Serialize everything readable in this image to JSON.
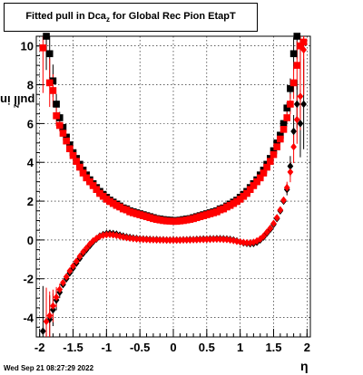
{
  "title": {
    "main": "Fitted pull in Dca",
    "sub": "z",
    "rest": " for Global Rec Pion EtapT"
  },
  "ylabel": {
    "main": "pull in Dca",
    "sub": "z"
  },
  "xlabel": "η",
  "datestamp": "Wed Sep 21 08:27:29 2022",
  "colors": {
    "series_black": "#000000",
    "series_red": "#ff0000",
    "grid": "#000000"
  },
  "chart_data": {
    "type": "scatter",
    "xlim": [
      -2.05,
      2.05
    ],
    "ylim": [
      -5.0,
      10.5
    ],
    "grid": true,
    "xticks": [
      "-2",
      "-1.5",
      "-1",
      "-0.5",
      "0",
      "0.5",
      "1",
      "1.5",
      "2"
    ],
    "yticks": [
      "-4",
      "-2",
      "0",
      "2",
      "4",
      "6",
      "8",
      "10"
    ],
    "series": [
      {
        "marker": "square",
        "color": "#000000",
        "points": [
          [
            -1.9,
            10.5
          ],
          [
            -1.85,
            9.6
          ],
          [
            -1.8,
            8.2
          ],
          [
            -1.75,
            7.0
          ],
          [
            -1.7,
            6.3
          ],
          [
            -1.65,
            5.8
          ],
          [
            -1.6,
            5.3
          ],
          [
            -1.55,
            4.9
          ],
          [
            -1.5,
            4.5
          ],
          [
            -1.45,
            4.2
          ],
          [
            -1.4,
            3.9
          ],
          [
            -1.35,
            3.6
          ],
          [
            -1.3,
            3.35
          ],
          [
            -1.25,
            3.1
          ],
          [
            -1.2,
            2.9
          ],
          [
            -1.15,
            2.7
          ],
          [
            -1.1,
            2.5
          ],
          [
            -1.05,
            2.35
          ],
          [
            -1.0,
            2.2
          ],
          [
            -0.95,
            2.05
          ],
          [
            -0.9,
            1.95
          ],
          [
            -0.85,
            1.85
          ],
          [
            -0.8,
            1.75
          ],
          [
            -0.75,
            1.65
          ],
          [
            -0.7,
            1.6
          ],
          [
            -0.65,
            1.5
          ],
          [
            -0.6,
            1.45
          ],
          [
            -0.55,
            1.4
          ],
          [
            -0.5,
            1.35
          ],
          [
            -0.45,
            1.3
          ],
          [
            -0.4,
            1.25
          ],
          [
            -0.35,
            1.2
          ],
          [
            -0.3,
            1.15
          ],
          [
            -0.25,
            1.1
          ],
          [
            -0.2,
            1.08
          ],
          [
            -0.15,
            1.05
          ],
          [
            -0.1,
            1.03
          ],
          [
            -0.05,
            1.02
          ],
          [
            0.0,
            1.0
          ],
          [
            0.05,
            1.0
          ],
          [
            0.1,
            1.02
          ],
          [
            0.15,
            1.05
          ],
          [
            0.2,
            1.08
          ],
          [
            0.25,
            1.1
          ],
          [
            0.3,
            1.15
          ],
          [
            0.35,
            1.2
          ],
          [
            0.4,
            1.25
          ],
          [
            0.45,
            1.3
          ],
          [
            0.5,
            1.35
          ],
          [
            0.55,
            1.4
          ],
          [
            0.6,
            1.45
          ],
          [
            0.65,
            1.5
          ],
          [
            0.7,
            1.6
          ],
          [
            0.75,
            1.65
          ],
          [
            0.8,
            1.75
          ],
          [
            0.85,
            1.85
          ],
          [
            0.9,
            1.95
          ],
          [
            0.95,
            2.05
          ],
          [
            1.0,
            2.2
          ],
          [
            1.05,
            2.35
          ],
          [
            1.1,
            2.5
          ],
          [
            1.15,
            2.7
          ],
          [
            1.2,
            2.9
          ],
          [
            1.25,
            3.1
          ],
          [
            1.3,
            3.35
          ],
          [
            1.35,
            3.6
          ],
          [
            1.4,
            3.9
          ],
          [
            1.45,
            4.2
          ],
          [
            1.5,
            4.6
          ],
          [
            1.55,
            5.0
          ],
          [
            1.6,
            5.4
          ],
          [
            1.65,
            6.0
          ],
          [
            1.7,
            6.8
          ],
          [
            1.75,
            7.8
          ],
          [
            1.8,
            9.6
          ],
          [
            1.85,
            10.6
          ],
          [
            1.9,
            10.0
          ]
        ]
      },
      {
        "marker": "square",
        "color": "#ff0000",
        "points": [
          [
            -1.95,
            9.9
          ],
          [
            -1.85,
            8.1
          ],
          [
            -1.8,
            7.7
          ],
          [
            -1.75,
            6.4
          ],
          [
            -1.7,
            5.9
          ],
          [
            -1.65,
            5.5
          ],
          [
            -1.6,
            5.1
          ],
          [
            -1.55,
            4.7
          ],
          [
            -1.5,
            4.35
          ],
          [
            -1.45,
            4.05
          ],
          [
            -1.4,
            3.75
          ],
          [
            -1.35,
            3.45
          ],
          [
            -1.3,
            3.2
          ],
          [
            -1.25,
            3.0
          ],
          [
            -1.2,
            2.8
          ],
          [
            -1.15,
            2.6
          ],
          [
            -1.1,
            2.4
          ],
          [
            -1.05,
            2.25
          ],
          [
            -1.0,
            2.1
          ],
          [
            -0.95,
            1.98
          ],
          [
            -0.9,
            1.88
          ],
          [
            -0.85,
            1.78
          ],
          [
            -0.8,
            1.7
          ],
          [
            -0.75,
            1.6
          ],
          [
            -0.7,
            1.55
          ],
          [
            -0.65,
            1.45
          ],
          [
            -0.6,
            1.4
          ],
          [
            -0.55,
            1.35
          ],
          [
            -0.5,
            1.3
          ],
          [
            -0.45,
            1.25
          ],
          [
            -0.4,
            1.2
          ],
          [
            -0.35,
            1.15
          ],
          [
            -0.3,
            1.1
          ],
          [
            -0.25,
            1.06
          ],
          [
            -0.2,
            1.03
          ],
          [
            -0.15,
            1.0
          ],
          [
            -0.1,
            0.98
          ],
          [
            -0.05,
            0.97
          ],
          [
            0.0,
            0.96
          ],
          [
            0.05,
            0.96
          ],
          [
            0.1,
            0.98
          ],
          [
            0.15,
            1.0
          ],
          [
            0.2,
            1.03
          ],
          [
            0.25,
            1.06
          ],
          [
            0.3,
            1.1
          ],
          [
            0.35,
            1.15
          ],
          [
            0.4,
            1.2
          ],
          [
            0.45,
            1.25
          ],
          [
            0.5,
            1.3
          ],
          [
            0.55,
            1.35
          ],
          [
            0.6,
            1.4
          ],
          [
            0.65,
            1.45
          ],
          [
            0.7,
            1.55
          ],
          [
            0.75,
            1.6
          ],
          [
            0.8,
            1.7
          ],
          [
            0.85,
            1.78
          ],
          [
            0.9,
            1.88
          ],
          [
            0.95,
            1.98
          ],
          [
            1.0,
            2.1
          ],
          [
            1.05,
            2.25
          ],
          [
            1.1,
            2.4
          ],
          [
            1.15,
            2.6
          ],
          [
            1.2,
            2.8
          ],
          [
            1.25,
            3.0
          ],
          [
            1.3,
            3.2
          ],
          [
            1.35,
            3.45
          ],
          [
            1.4,
            3.75
          ],
          [
            1.45,
            4.05
          ],
          [
            1.5,
            4.4
          ],
          [
            1.55,
            4.8
          ],
          [
            1.6,
            5.2
          ],
          [
            1.65,
            5.7
          ],
          [
            1.7,
            6.3
          ],
          [
            1.75,
            7.0
          ],
          [
            1.8,
            8.1
          ],
          [
            1.85,
            9.0
          ],
          [
            1.9,
            10.0
          ],
          [
            1.95,
            10.2
          ]
        ]
      },
      {
        "marker": "diamond",
        "color": "#000000",
        "points": [
          [
            -1.95,
            -4.7
          ],
          [
            -1.85,
            -4.1
          ],
          [
            -1.8,
            -3.6
          ],
          [
            -1.75,
            -3.1
          ],
          [
            -1.7,
            -2.7
          ],
          [
            -1.65,
            -2.3
          ],
          [
            -1.6,
            -2.0
          ],
          [
            -1.55,
            -1.7
          ],
          [
            -1.5,
            -1.45
          ],
          [
            -1.45,
            -1.2
          ],
          [
            -1.4,
            -0.95
          ],
          [
            -1.35,
            -0.7
          ],
          [
            -1.3,
            -0.5
          ],
          [
            -1.25,
            -0.3
          ],
          [
            -1.2,
            -0.1
          ],
          [
            -1.15,
            0.05
          ],
          [
            -1.1,
            0.2
          ],
          [
            -1.05,
            0.28
          ],
          [
            -1.0,
            0.33
          ],
          [
            -0.95,
            0.35
          ],
          [
            -0.9,
            0.33
          ],
          [
            -0.85,
            0.3
          ],
          [
            -0.8,
            0.25
          ],
          [
            -0.75,
            0.2
          ],
          [
            -0.7,
            0.16
          ],
          [
            -0.65,
            0.13
          ],
          [
            -0.6,
            0.1
          ],
          [
            -0.55,
            0.08
          ],
          [
            -0.5,
            0.06
          ],
          [
            -0.45,
            0.05
          ],
          [
            -0.4,
            0.04
          ],
          [
            -0.35,
            0.03
          ],
          [
            -0.3,
            0.02
          ],
          [
            -0.25,
            0.02
          ],
          [
            -0.2,
            0.01
          ],
          [
            -0.15,
            0.01
          ],
          [
            -0.1,
            0.0
          ],
          [
            -0.05,
            0.0
          ],
          [
            0.0,
            0.0
          ],
          [
            0.05,
            0.0
          ],
          [
            0.1,
            0.0
          ],
          [
            0.15,
            0.01
          ],
          [
            0.2,
            0.01
          ],
          [
            0.25,
            0.02
          ],
          [
            0.3,
            0.02
          ],
          [
            0.35,
            0.03
          ],
          [
            0.4,
            0.04
          ],
          [
            0.45,
            0.05
          ],
          [
            0.5,
            0.05
          ],
          [
            0.55,
            0.06
          ],
          [
            0.6,
            0.06
          ],
          [
            0.65,
            0.07
          ],
          [
            0.7,
            0.07
          ],
          [
            0.75,
            0.06
          ],
          [
            0.8,
            0.05
          ],
          [
            0.85,
            0.03
          ],
          [
            0.9,
            0.0
          ],
          [
            0.95,
            -0.05
          ],
          [
            1.0,
            -0.1
          ],
          [
            1.05,
            -0.15
          ],
          [
            1.1,
            -0.18
          ],
          [
            1.15,
            -0.2
          ],
          [
            1.2,
            -0.18
          ],
          [
            1.25,
            -0.12
          ],
          [
            1.3,
            0.0
          ],
          [
            1.35,
            0.15
          ],
          [
            1.4,
            0.35
          ],
          [
            1.45,
            0.55
          ],
          [
            1.5,
            0.8
          ],
          [
            1.55,
            1.1
          ],
          [
            1.6,
            1.5
          ],
          [
            1.65,
            2.0
          ],
          [
            1.7,
            2.6
          ],
          [
            1.75,
            3.8
          ],
          [
            1.8,
            5.6
          ],
          [
            1.85,
            7.0
          ],
          [
            1.9,
            6.0
          ],
          [
            1.95,
            7.0
          ]
        ]
      },
      {
        "marker": "diamond",
        "color": "#ff0000",
        "points": [
          [
            -1.9,
            -4.2
          ],
          [
            -1.85,
            -3.9
          ],
          [
            -1.8,
            -3.4
          ],
          [
            -1.75,
            -2.95
          ],
          [
            -1.7,
            -2.55
          ],
          [
            -1.65,
            -2.2
          ],
          [
            -1.6,
            -1.9
          ],
          [
            -1.55,
            -1.6
          ],
          [
            -1.5,
            -1.35
          ],
          [
            -1.45,
            -1.1
          ],
          [
            -1.4,
            -0.85
          ],
          [
            -1.35,
            -0.62
          ],
          [
            -1.3,
            -0.42
          ],
          [
            -1.25,
            -0.22
          ],
          [
            -1.2,
            -0.05
          ],
          [
            -1.15,
            0.08
          ],
          [
            -1.1,
            0.18
          ],
          [
            -1.05,
            0.24
          ],
          [
            -1.0,
            0.27
          ],
          [
            -0.95,
            0.28
          ],
          [
            -0.9,
            0.26
          ],
          [
            -0.85,
            0.23
          ],
          [
            -0.8,
            0.19
          ],
          [
            -0.75,
            0.15
          ],
          [
            -0.7,
            0.12
          ],
          [
            -0.65,
            0.09
          ],
          [
            -0.6,
            0.07
          ],
          [
            -0.55,
            0.05
          ],
          [
            -0.5,
            0.04
          ],
          [
            -0.45,
            0.03
          ],
          [
            -0.4,
            0.02
          ],
          [
            -0.35,
            0.01
          ],
          [
            -0.3,
            0.01
          ],
          [
            -0.25,
            0.0
          ],
          [
            -0.2,
            0.0
          ],
          [
            -0.15,
            0.0
          ],
          [
            -0.1,
            -0.01
          ],
          [
            -0.05,
            -0.01
          ],
          [
            0.0,
            -0.01
          ],
          [
            0.05,
            -0.01
          ],
          [
            0.1,
            -0.01
          ],
          [
            0.15,
            0.0
          ],
          [
            0.2,
            0.0
          ],
          [
            0.25,
            0.0
          ],
          [
            0.3,
            0.01
          ],
          [
            0.35,
            0.01
          ],
          [
            0.4,
            0.02
          ],
          [
            0.45,
            0.02
          ],
          [
            0.5,
            0.03
          ],
          [
            0.55,
            0.03
          ],
          [
            0.6,
            0.04
          ],
          [
            0.65,
            0.04
          ],
          [
            0.7,
            0.04
          ],
          [
            0.75,
            0.03
          ],
          [
            0.8,
            0.02
          ],
          [
            0.85,
            0.0
          ],
          [
            0.9,
            -0.03
          ],
          [
            0.95,
            -0.07
          ],
          [
            1.0,
            -0.1
          ],
          [
            1.05,
            -0.13
          ],
          [
            1.1,
            -0.15
          ],
          [
            1.15,
            -0.15
          ],
          [
            1.2,
            -0.12
          ],
          [
            1.25,
            -0.05
          ],
          [
            1.3,
            0.05
          ],
          [
            1.35,
            0.2
          ],
          [
            1.4,
            0.4
          ],
          [
            1.45,
            0.6
          ],
          [
            1.5,
            0.85
          ],
          [
            1.55,
            1.15
          ],
          [
            1.6,
            1.55
          ],
          [
            1.65,
            2.05
          ],
          [
            1.7,
            2.7
          ],
          [
            1.75,
            3.5
          ],
          [
            1.8,
            4.8
          ],
          [
            1.85,
            6.2
          ],
          [
            1.9,
            7.4
          ],
          [
            1.95,
            9.8
          ]
        ]
      }
    ]
  }
}
